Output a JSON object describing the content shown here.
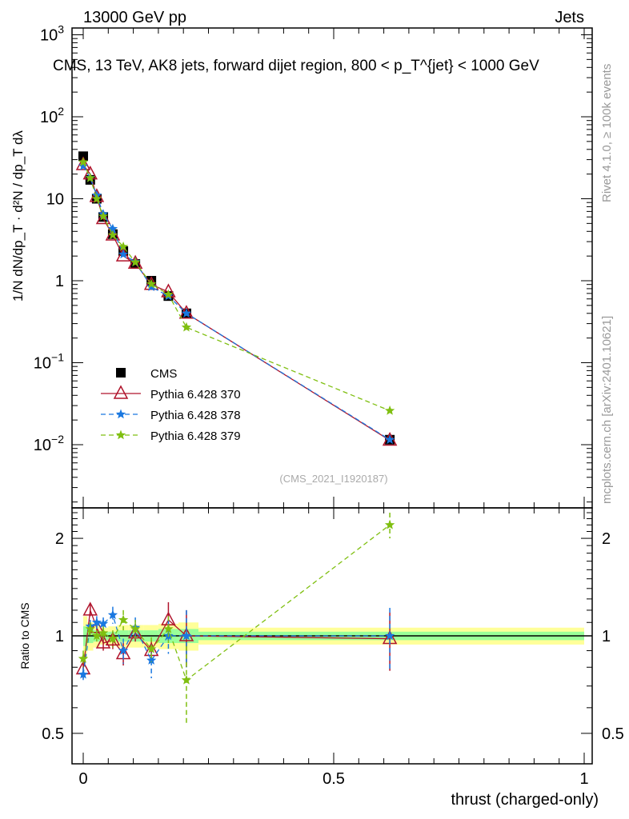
{
  "header": {
    "left": "13000 GeV pp",
    "right": "Jets"
  },
  "side": {
    "rivet": "Rivet 4.1.0, ≥ 100k events",
    "mcplots": "mcplots.cern.ch [arXiv:2401.10621]"
  },
  "watermark": "(CMS_2021_I1920187)",
  "chart_data": [
    {
      "type": "line",
      "title": "CMS, 13 TeV, AK8 jets, forward dijet region, 800 < p_T^{jet} < 1000 GeV",
      "ylabel": "1/N dN/dp_T · d²N / dp_T dλ",
      "yscale": "log",
      "ylim": [
        0.0017,
        1300
      ],
      "xlim": [
        -0.02,
        1.02
      ],
      "yticks": [
        {
          "v": 1000,
          "label": "10",
          "exp": "3"
        },
        {
          "v": 100,
          "label": "10",
          "exp": "2"
        },
        {
          "v": 10,
          "label": "10",
          "exp": ""
        },
        {
          "v": 1,
          "label": "1",
          "exp": ""
        },
        {
          "v": 0.1,
          "label": "10",
          "exp": "−1"
        },
        {
          "v": 0.01,
          "label": "10",
          "exp": "−2"
        }
      ],
      "legend_position": "bottom-left",
      "x": [
        0.0,
        0.014,
        0.027,
        0.04,
        0.059,
        0.08,
        0.104,
        0.136,
        0.17,
        0.206,
        0.612
      ],
      "series": [
        {
          "name": "CMS",
          "color": "#000000",
          "marker": "square",
          "values": [
            33,
            17,
            10,
            6.0,
            3.7,
            2.3,
            1.6,
            1.0,
            0.65,
            0.4,
            0.0115
          ]
        },
        {
          "name": "Pythia 6.428 370",
          "color": "#b0142c",
          "marker": "triangle",
          "dash": "",
          "values": [
            26,
            20,
            10.6,
            5.7,
            3.6,
            2.0,
            1.63,
            0.9,
            0.73,
            0.4,
            0.0113
          ]
        },
        {
          "name": "Pythia 6.428 378",
          "color": "#1a78e0",
          "marker": "star",
          "dash": "6,4",
          "values": [
            25,
            18,
            11,
            6.5,
            4.3,
            2.1,
            1.7,
            0.84,
            0.65,
            0.4,
            0.0115
          ]
        },
        {
          "name": "Pythia 6.428 379",
          "color": "#7fbf10",
          "marker": "star",
          "dash": "6,4",
          "values": [
            28,
            17.9,
            10,
            6.1,
            3.6,
            2.6,
            1.68,
            0.91,
            0.68,
            0.27,
            0.026
          ]
        }
      ]
    },
    {
      "type": "line",
      "ylabel": "Ratio to CMS",
      "xlabel": "thrust (charged-only)",
      "yscale": "log",
      "ylim": [
        0.4,
        2.48
      ],
      "yticks": [
        {
          "v": 2,
          "label": "2"
        },
        {
          "v": 1,
          "label": "1"
        },
        {
          "v": 0.5,
          "label": "0.5"
        }
      ],
      "xticks": [
        {
          "v": 0,
          "label": "0"
        },
        {
          "v": 0.5,
          "label": "0.5"
        },
        {
          "v": 1,
          "label": "1"
        }
      ],
      "bin_edges": [
        0,
        0.008,
        0.02,
        0.033,
        0.05,
        0.068,
        0.09,
        0.12,
        0.15,
        0.19,
        0.23,
        1.0
      ],
      "band_outer": [
        0.15,
        0.1,
        0.08,
        0.06,
        0.07,
        0.08,
        0.08,
        0.08,
        0.09,
        0.1,
        0.06
      ],
      "band_inner": [
        0.07,
        0.05,
        0.04,
        0.03,
        0.03,
        0.04,
        0.04,
        0.04,
        0.05,
        0.05,
        0.03
      ],
      "series": [
        {
          "name": "Pythia 6.428 370",
          "values": [
            0.79,
            1.2,
            1.06,
            0.95,
            0.97,
            0.88,
            1.02,
            0.9,
            1.12,
            1.0,
            0.98
          ],
          "err": [
            0.05,
            0.05,
            0.04,
            0.05,
            0.06,
            0.07,
            0.06,
            0.07,
            0.15,
            0.2,
            0.2
          ]
        },
        {
          "name": "Pythia 6.428 378",
          "values": [
            0.76,
            1.07,
            1.1,
            1.09,
            1.16,
            0.9,
            1.06,
            0.84,
            1.0,
            1.0,
            1.0
          ],
          "err": [
            0.04,
            0.05,
            0.05,
            0.05,
            0.07,
            0.08,
            0.08,
            0.1,
            0.12,
            0.2,
            0.22
          ]
        },
        {
          "name": "Pythia 6.428 379",
          "values": [
            0.85,
            1.05,
            1.0,
            1.02,
            0.98,
            1.12,
            1.05,
            0.91,
            1.05,
            0.73,
            2.2
          ],
          "err": [
            0.05,
            0.05,
            0.04,
            0.05,
            0.06,
            0.08,
            0.07,
            0.08,
            0.1,
            0.2,
            0.2
          ]
        }
      ]
    }
  ]
}
